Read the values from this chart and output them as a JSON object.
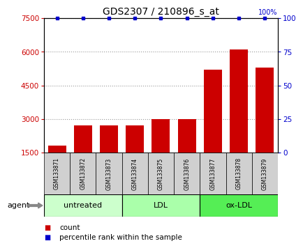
{
  "title": "GDS2307 / 210896_s_at",
  "samples": [
    "GSM133871",
    "GSM133872",
    "GSM133873",
    "GSM133874",
    "GSM133875",
    "GSM133876",
    "GSM133877",
    "GSM133878",
    "GSM133879"
  ],
  "counts": [
    1800,
    2700,
    2700,
    2700,
    3000,
    3000,
    5200,
    6100,
    5300
  ],
  "percentiles": [
    100,
    100,
    100,
    100,
    100,
    100,
    100,
    100,
    100
  ],
  "bar_color": "#cc0000",
  "dot_color": "#0000cc",
  "ylim_left": [
    1500,
    7500
  ],
  "yticks_left": [
    1500,
    3000,
    4500,
    6000,
    7500
  ],
  "ylim_right": [
    0,
    100
  ],
  "yticks_right": [
    0,
    25,
    50,
    75,
    100
  ],
  "groups": [
    {
      "label": "untreated",
      "indices": [
        0,
        1,
        2
      ],
      "color": "#ccffcc"
    },
    {
      "label": "LDL",
      "indices": [
        3,
        4,
        5
      ],
      "color": "#aaffaa"
    },
    {
      "label": "ox-LDL",
      "indices": [
        6,
        7,
        8
      ],
      "color": "#55ee55"
    }
  ],
  "agent_label": "agent",
  "legend_count_label": "count",
  "legend_pct_label": "percentile rank within the sample",
  "background_color": "#ffffff",
  "plot_bg_color": "#ffffff",
  "grid_color": "#888888",
  "sample_box_color": "#d0d0d0",
  "bar_bottom": 1500
}
